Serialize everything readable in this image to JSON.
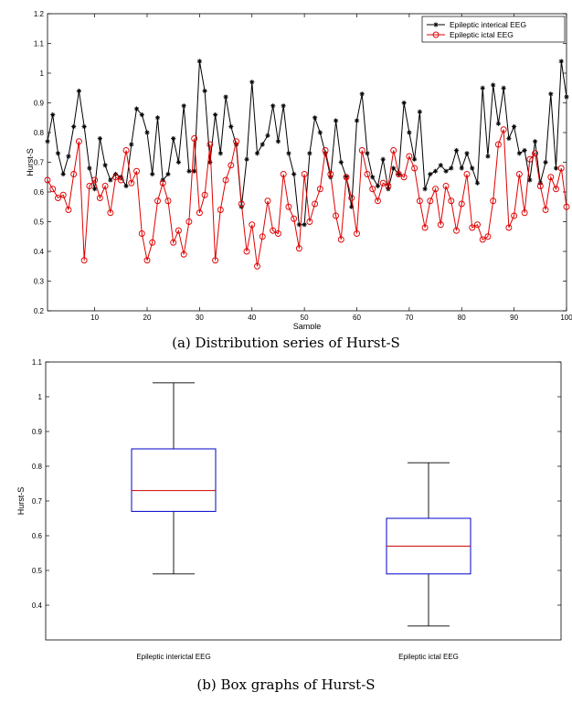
{
  "captions": {
    "a": "(a) Distribution series of Hurst-S",
    "b": "(b) Box graphs of Hurst-S"
  },
  "colors": {
    "interictal": "#000000",
    "ictal": "#e00000",
    "box": "#0000cc",
    "median": "#cc0000"
  },
  "chart_data": [
    {
      "type": "line",
      "xlabel": "Sample",
      "ylabel": "Hurst-S",
      "xlim": [
        1,
        100
      ],
      "ylim": [
        0.2,
        1.2
      ],
      "xticks": [
        10,
        20,
        30,
        40,
        50,
        60,
        70,
        80,
        90,
        100
      ],
      "yticks": [
        0.2,
        0.3,
        0.4,
        0.5,
        0.6,
        0.7,
        0.8,
        0.9,
        1,
        1.1,
        1.2
      ],
      "legend_position": "top-right",
      "grid": false,
      "series": [
        {
          "name": "Epileptic interical EEG",
          "marker": "star",
          "color": "#000000",
          "x": [
            1,
            2,
            3,
            4,
            5,
            6,
            7,
            8,
            9,
            10,
            11,
            12,
            13,
            14,
            15,
            16,
            17,
            18,
            19,
            20,
            21,
            22,
            23,
            24,
            25,
            26,
            27,
            28,
            29,
            30,
            31,
            32,
            33,
            34,
            35,
            36,
            37,
            38,
            39,
            40,
            41,
            42,
            43,
            44,
            45,
            46,
            47,
            48,
            49,
            50,
            51,
            52,
            53,
            54,
            55,
            56,
            57,
            58,
            59,
            60,
            61,
            62,
            63,
            64,
            65,
            66,
            67,
            68,
            69,
            70,
            71,
            72,
            73,
            74,
            75,
            76,
            77,
            78,
            79,
            80,
            81,
            82,
            83,
            84,
            85,
            86,
            87,
            88,
            89,
            90,
            91,
            92,
            93,
            94,
            95,
            96,
            97,
            98,
            99,
            100
          ],
          "values": [
            0.77,
            0.86,
            0.73,
            0.66,
            0.72,
            0.82,
            0.94,
            0.82,
            0.68,
            0.61,
            0.78,
            0.69,
            0.64,
            0.66,
            0.65,
            0.62,
            0.76,
            0.88,
            0.86,
            0.8,
            0.66,
            0.85,
            0.64,
            0.66,
            0.78,
            0.7,
            0.89,
            0.67,
            0.67,
            1.04,
            0.94,
            0.7,
            0.86,
            0.73,
            0.92,
            0.82,
            0.76,
            0.55,
            0.71,
            0.97,
            0.73,
            0.76,
            0.79,
            0.89,
            0.77,
            0.89,
            0.73,
            0.66,
            0.49,
            0.49,
            0.73,
            0.85,
            0.8,
            0.73,
            0.65,
            0.84,
            0.7,
            0.65,
            0.55,
            0.84,
            0.93,
            0.73,
            0.65,
            0.62,
            0.71,
            0.61,
            0.68,
            0.66,
            0.9,
            0.8,
            0.71,
            0.87,
            0.61,
            0.66,
            0.67,
            0.69,
            0.67,
            0.68,
            0.74,
            0.68,
            0.73,
            0.68,
            0.63,
            0.95,
            0.72,
            0.96,
            0.83,
            0.95,
            0.78,
            0.82,
            0.73,
            0.74,
            0.64,
            0.77,
            0.63,
            0.7,
            0.93,
            0.68,
            1.04,
            0.92
          ]
        },
        {
          "name": "Epileptic ictal EEG",
          "marker": "circle",
          "color": "#e00000",
          "x": [
            1,
            2,
            3,
            4,
            5,
            6,
            7,
            8,
            9,
            10,
            11,
            12,
            13,
            14,
            15,
            16,
            17,
            18,
            19,
            20,
            21,
            22,
            23,
            24,
            25,
            26,
            27,
            28,
            29,
            30,
            31,
            32,
            33,
            34,
            35,
            36,
            37,
            38,
            39,
            40,
            41,
            42,
            43,
            44,
            45,
            46,
            47,
            48,
            49,
            50,
            51,
            52,
            53,
            54,
            55,
            56,
            57,
            58,
            59,
            60,
            61,
            62,
            63,
            64,
            65,
            66,
            67,
            68,
            69,
            70,
            71,
            72,
            73,
            74,
            75,
            76,
            77,
            78,
            79,
            80,
            81,
            82,
            83,
            84,
            85,
            86,
            87,
            88,
            89,
            90,
            91,
            92,
            93,
            94,
            95,
            96,
            97,
            98,
            99,
            100
          ],
          "values": [
            0.64,
            0.61,
            0.58,
            0.59,
            0.54,
            0.66,
            0.77,
            0.37,
            0.62,
            0.64,
            0.58,
            0.62,
            0.53,
            0.65,
            0.64,
            0.74,
            0.63,
            0.67,
            0.46,
            0.37,
            0.43,
            0.57,
            0.63,
            0.57,
            0.43,
            0.47,
            0.39,
            0.5,
            0.78,
            0.53,
            0.59,
            0.76,
            0.37,
            0.54,
            0.64,
            0.69,
            0.77,
            0.56,
            0.4,
            0.49,
            0.35,
            0.45,
            0.57,
            0.47,
            0.46,
            0.66,
            0.55,
            0.51,
            0.41,
            0.66,
            0.5,
            0.56,
            0.61,
            0.74,
            0.66,
            0.52,
            0.44,
            0.65,
            0.58,
            0.46,
            0.74,
            0.66,
            0.61,
            0.57,
            0.63,
            0.62,
            0.74,
            0.66,
            0.65,
            0.72,
            0.68,
            0.57,
            0.48,
            0.57,
            0.61,
            0.49,
            0.62,
            0.57,
            0.47,
            0.56,
            0.66,
            0.48,
            0.49,
            0.44,
            0.45,
            0.57,
            0.76,
            0.81,
            0.48,
            0.52,
            0.66,
            0.53,
            0.71,
            0.73,
            0.62,
            0.54,
            0.65,
            0.61,
            0.68,
            0.55
          ]
        }
      ]
    },
    {
      "type": "box",
      "ylabel": "Hurst-S",
      "ylim": [
        0.3,
        1.1
      ],
      "yticks": [
        0.4,
        0.5,
        0.6,
        0.7,
        0.8,
        0.9,
        1,
        1.1
      ],
      "categories": [
        "Epileptic interictal EEG",
        "Epileptic ictal EEG"
      ],
      "boxes": [
        {
          "min": 0.49,
          "q1": 0.67,
          "median": 0.73,
          "q3": 0.85,
          "max": 1.04
        },
        {
          "min": 0.34,
          "q1": 0.49,
          "median": 0.57,
          "q3": 0.65,
          "max": 0.81
        }
      ]
    }
  ]
}
